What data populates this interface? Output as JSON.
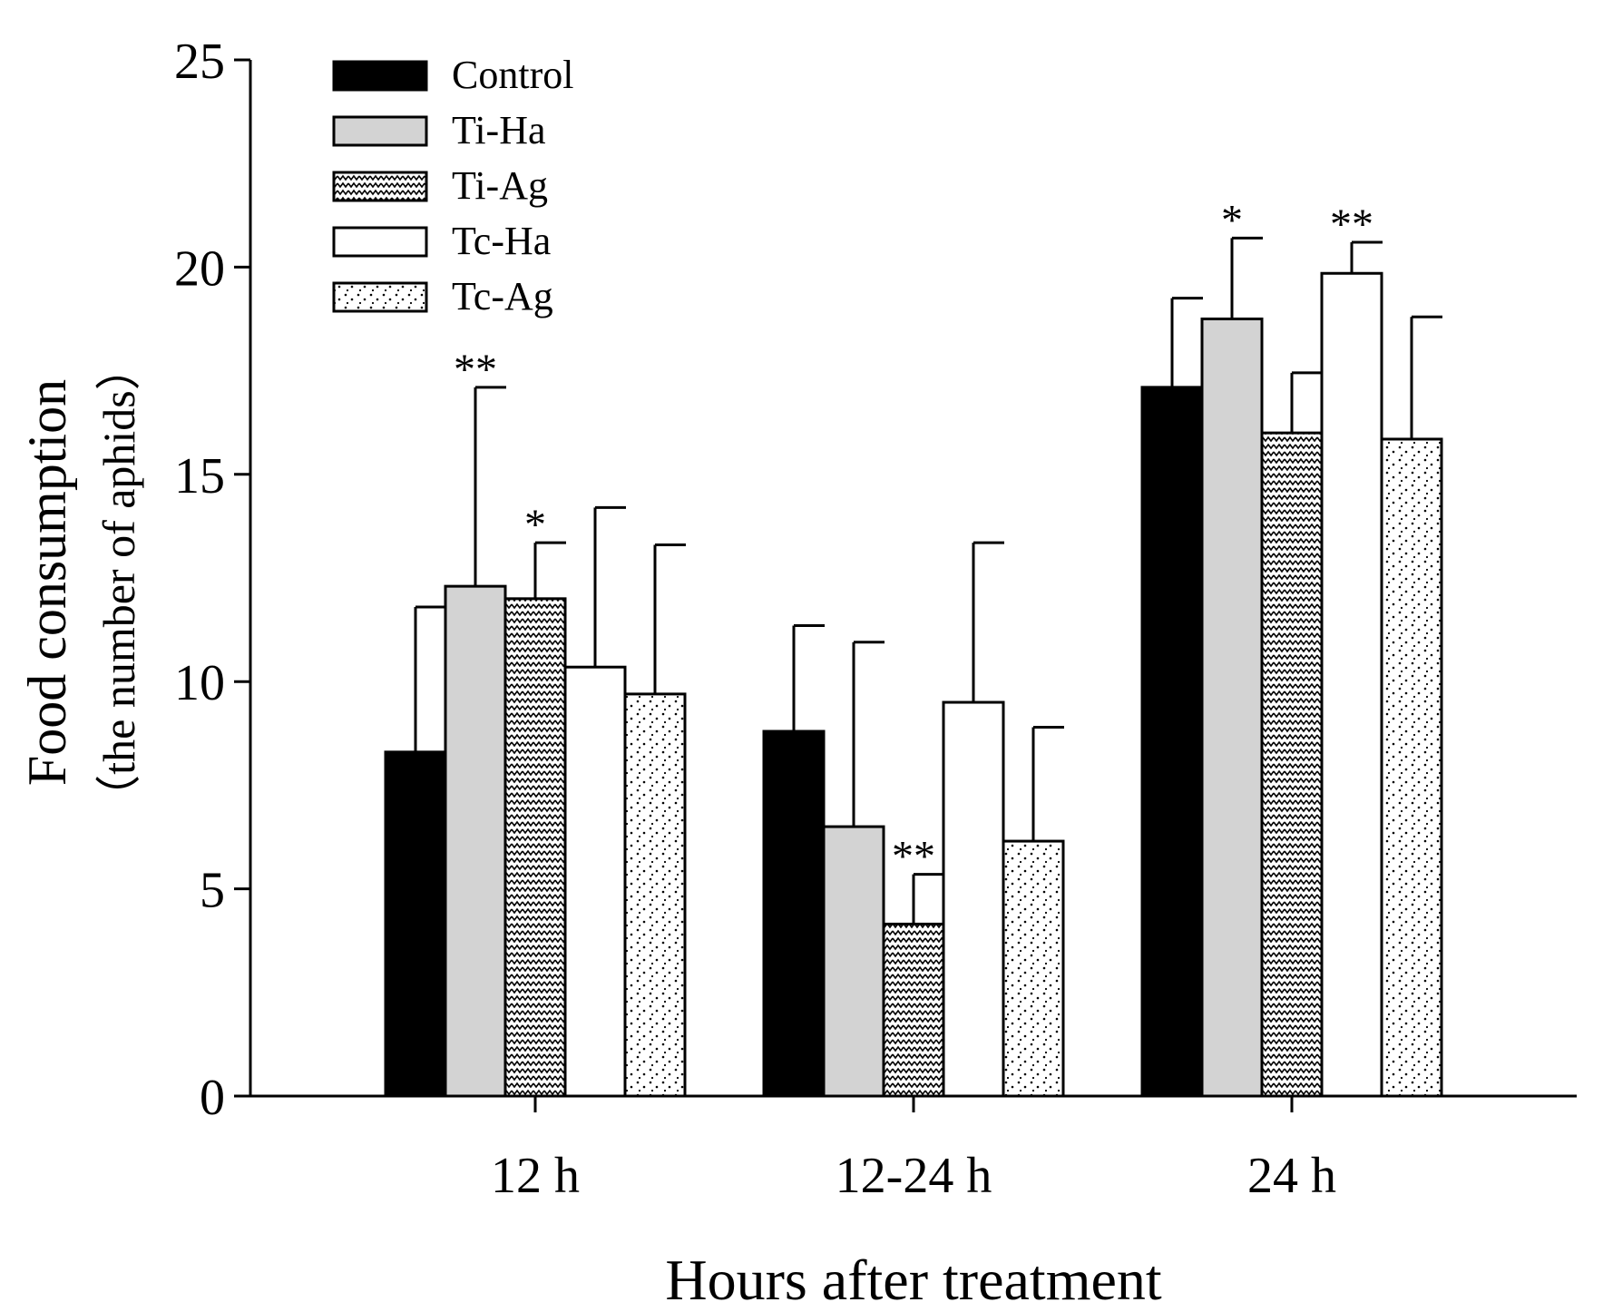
{
  "chart_data": {
    "type": "bar",
    "title": "",
    "xlabel": "Hours after treatment",
    "ylabel": "Food consumption",
    "ylabel_sub": "（the number of aphids）",
    "categories": [
      "12 h",
      "12-24 h",
      "24 h"
    ],
    "ylim": [
      0,
      25
    ],
    "yticks": [
      0,
      5,
      10,
      15,
      20,
      25
    ],
    "legend_position": "top-left",
    "series": [
      {
        "name": "Control",
        "pattern": "solid-black",
        "values": [
          8.3,
          8.8,
          17.1
        ],
        "errors": [
          3.5,
          2.55,
          2.15
        ],
        "sig": [
          "",
          "",
          ""
        ]
      },
      {
        "name": "Ti-Ha",
        "pattern": "solid-gray",
        "values": [
          12.3,
          6.5,
          18.75
        ],
        "errors": [
          4.8,
          4.45,
          1.95
        ],
        "sig": [
          "**",
          "",
          "*"
        ]
      },
      {
        "name": "Ti-Ag",
        "pattern": "zigzag",
        "values": [
          12.0,
          4.15,
          16.0
        ],
        "errors": [
          1.35,
          1.2,
          1.45
        ],
        "sig": [
          "*",
          "**",
          ""
        ]
      },
      {
        "name": "Tc-Ha",
        "pattern": "solid-white",
        "values": [
          10.35,
          9.5,
          19.85
        ],
        "errors": [
          3.85,
          3.85,
          0.75
        ],
        "sig": [
          "",
          "",
          "**"
        ]
      },
      {
        "name": "Tc-Ag",
        "pattern": "dots",
        "values": [
          9.7,
          6.15,
          15.85
        ],
        "errors": [
          3.6,
          2.75,
          2.95
        ],
        "sig": [
          "",
          "",
          ""
        ]
      }
    ],
    "colors": {
      "control": "#000000",
      "ti_ha": "#d3d3d3",
      "tc_ha": "#ffffff",
      "stroke": "#000000"
    }
  }
}
